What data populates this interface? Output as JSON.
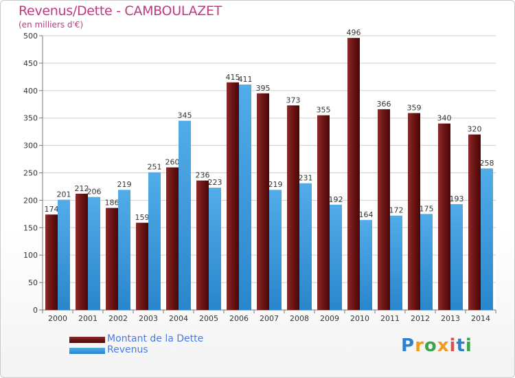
{
  "chart_data": {
    "type": "bar",
    "title": "Revenus/Dette - CAMBOULAZET",
    "subtitle": "(en milliers d'€)",
    "categories": [
      "2000",
      "2001",
      "2002",
      "2003",
      "2004",
      "2005",
      "2006",
      "2007",
      "2008",
      "2009",
      "2010",
      "2011",
      "2012",
      "2013",
      "2014"
    ],
    "series": [
      {
        "name": "Montant de la Dette",
        "color": "#7a1d1d",
        "values": [
          174,
          212,
          186,
          159,
          260,
          236,
          415,
          395,
          373,
          355,
          496,
          366,
          359,
          340,
          320
        ]
      },
      {
        "name": "Revenus",
        "color": "#3f9fe0",
        "values": [
          201,
          206,
          219,
          251,
          345,
          223,
          411,
          219,
          231,
          192,
          164,
          172,
          175,
          193,
          258
        ]
      }
    ],
    "ylim": [
      0,
      500
    ],
    "yticks": [
      0,
      50,
      100,
      150,
      200,
      250,
      300,
      350,
      400,
      450,
      500
    ],
    "grid": true,
    "legend": "bottom-left"
  },
  "logo": {
    "text": "Proxiti",
    "letters": [
      "P",
      "r",
      "o",
      "x",
      "i",
      "t",
      "i"
    ],
    "colors": [
      "#2d7fd0",
      "#f29a1e",
      "#3aa64a",
      "#f29a1e",
      "#d9534f",
      "#2d7fd0",
      "#3aa64a"
    ]
  }
}
